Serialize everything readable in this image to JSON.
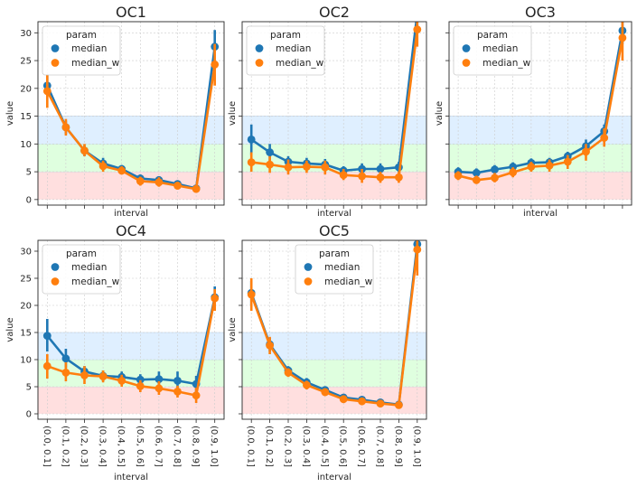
{
  "chart_data": {
    "type": "line",
    "categories": [
      "(0.0, 0.1]",
      "(0.1, 0.2]",
      "(0.2, 0.3]",
      "(0.3, 0.4]",
      "(0.4, 0.5]",
      "(0.5, 0.6]",
      "(0.6, 0.7]",
      "(0.7, 0.8]",
      "(0.8, 0.9]",
      "(0.9, 1.0]"
    ],
    "ylim": [
      -1,
      32
    ],
    "yticks": [
      0,
      5,
      10,
      15,
      20,
      25,
      30
    ],
    "xlabel": "interval",
    "ylabel": "value",
    "legend_title": "param",
    "colors": {
      "median": "#1f77b4",
      "median_w": "#ff7f0e",
      "band_low": "#ffdddd",
      "band_mid": "#ddffdd",
      "band_high": "#ddeeff",
      "grid": "#cccccc"
    },
    "bands": [
      {
        "from": 0,
        "to": 5,
        "color": "#ffdddd"
      },
      {
        "from": 5,
        "to": 10,
        "color": "#ddffdd"
      },
      {
        "from": 10,
        "to": 15,
        "color": "#ddeeff"
      }
    ],
    "panels": [
      {
        "title": "OC1",
        "legend": "upper-left",
        "series": [
          {
            "name": "median",
            "values": [
              20.5,
              13.0,
              8.8,
              6.5,
              5.5,
              3.8,
              3.5,
              2.8,
              2.0,
              27.5
            ],
            "err": [
              [
                18.5,
                22.5
              ],
              [
                11.8,
                14.2
              ],
              [
                7.8,
                9.8
              ],
              [
                5.5,
                7.5
              ],
              [
                4.8,
                6.2
              ],
              [
                3.0,
                4.5
              ],
              [
                2.8,
                4.2
              ],
              [
                2.2,
                3.4
              ],
              [
                1.5,
                2.6
              ],
              [
                24.0,
                30.5
              ]
            ]
          },
          {
            "name": "median_w",
            "values": [
              19.5,
              13.0,
              8.8,
              6.0,
              5.2,
              3.3,
              3.1,
              2.5,
              1.9,
              24.3
            ],
            "err": [
              [
                16.5,
                22.5
              ],
              [
                11.5,
                14.5
              ],
              [
                7.8,
                10.0
              ],
              [
                5.0,
                7.0
              ],
              [
                4.5,
                6.0
              ],
              [
                2.5,
                4.1
              ],
              [
                2.3,
                4.0
              ],
              [
                1.8,
                3.2
              ],
              [
                1.3,
                2.5
              ],
              [
                20.5,
                28.0
              ]
            ]
          }
        ]
      },
      {
        "title": "OC2",
        "legend": "upper-left",
        "series": [
          {
            "name": "median",
            "values": [
              10.8,
              8.5,
              6.8,
              6.5,
              6.3,
              5.2,
              5.5,
              5.5,
              5.8,
              33.5
            ],
            "err": [
              [
                8.0,
                13.5
              ],
              [
                7.0,
                10.0
              ],
              [
                5.8,
                7.8
              ],
              [
                5.5,
                7.5
              ],
              [
                5.3,
                7.3
              ],
              [
                4.5,
                6.0
              ],
              [
                4.5,
                6.5
              ],
              [
                4.5,
                6.5
              ],
              [
                4.8,
                6.8
              ],
              [
                30.0,
                35.0
              ]
            ]
          },
          {
            "name": "median_w",
            "values": [
              6.7,
              6.3,
              5.8,
              5.9,
              5.8,
              4.4,
              4.2,
              4.0,
              4.0,
              30.6
            ],
            "err": [
              [
                5.0,
                8.5
              ],
              [
                4.8,
                7.8
              ],
              [
                4.5,
                7.2
              ],
              [
                4.8,
                7.0
              ],
              [
                4.5,
                7.0
              ],
              [
                3.5,
                5.5
              ],
              [
                3.0,
                5.5
              ],
              [
                3.0,
                5.0
              ],
              [
                3.0,
                5.0
              ],
              [
                27.5,
                33.5
              ]
            ]
          }
        ]
      },
      {
        "title": "OC3",
        "legend": "upper-left",
        "series": [
          {
            "name": "median",
            "values": [
              5.0,
              4.8,
              5.4,
              5.9,
              6.6,
              6.7,
              7.8,
              9.6,
              12.3,
              30.4
            ],
            "err": [
              [
                4.2,
                5.8
              ],
              [
                4.0,
                5.6
              ],
              [
                4.6,
                6.2
              ],
              [
                5.1,
                6.7
              ],
              [
                5.8,
                7.4
              ],
              [
                5.9,
                7.5
              ],
              [
                7.0,
                8.6
              ],
              [
                8.5,
                10.8
              ],
              [
                11.0,
                13.5
              ],
              [
                28.0,
                33.0
              ]
            ]
          },
          {
            "name": "median_w",
            "values": [
              4.3,
              3.5,
              3.9,
              4.9,
              5.9,
              6.1,
              6.8,
              8.6,
              11.1,
              29.1
            ],
            "err": [
              [
                3.5,
                5.1
              ],
              [
                2.8,
                4.3
              ],
              [
                3.1,
                4.8
              ],
              [
                4.0,
                5.8
              ],
              [
                5.0,
                6.8
              ],
              [
                5.0,
                7.2
              ],
              [
                5.5,
                8.0
              ],
              [
                7.0,
                10.0
              ],
              [
                9.5,
                12.8
              ],
              [
                25.0,
                32.5
              ]
            ]
          }
        ]
      },
      {
        "title": "OC4",
        "legend": "upper-left",
        "series": [
          {
            "name": "median",
            "values": [
              14.4,
              10.2,
              7.8,
              7.0,
              6.8,
              6.3,
              6.4,
              6.1,
              5.5,
              21.5
            ],
            "err": [
              [
                11.5,
                17.5
              ],
              [
                8.5,
                12.0
              ],
              [
                6.8,
                8.8
              ],
              [
                6.0,
                8.0
              ],
              [
                5.8,
                7.8
              ],
              [
                5.3,
                7.3
              ],
              [
                5.0,
                7.8
              ],
              [
                4.5,
                7.8
              ],
              [
                4.0,
                7.0
              ],
              [
                19.5,
                23.5
              ]
            ]
          },
          {
            "name": "median_w",
            "values": [
              8.8,
              7.6,
              7.1,
              6.9,
              6.1,
              5.1,
              4.7,
              4.1,
              3.4,
              21.3
            ],
            "err": [
              [
                6.5,
                11.0
              ],
              [
                6.0,
                9.5
              ],
              [
                5.5,
                8.8
              ],
              [
                5.8,
                8.0
              ],
              [
                5.0,
                7.2
              ],
              [
                4.0,
                6.2
              ],
              [
                3.5,
                6.0
              ],
              [
                3.0,
                5.2
              ],
              [
                2.0,
                4.8
              ],
              [
                19.0,
                23.0
              ]
            ]
          }
        ]
      },
      {
        "title": "OC5",
        "legend": "upper-center",
        "series": [
          {
            "name": "median",
            "values": [
              22.3,
              12.8,
              8.0,
              5.8,
              4.4,
              3.0,
              2.6,
              2.1,
              1.7,
              31.3
            ],
            "err": [
              [
                20.0,
                24.5
              ],
              [
                11.5,
                14.0
              ],
              [
                7.2,
                8.8
              ],
              [
                5.0,
                6.6
              ],
              [
                3.8,
                5.0
              ],
              [
                2.5,
                3.5
              ],
              [
                2.1,
                3.1
              ],
              [
                1.6,
                2.6
              ],
              [
                1.2,
                2.2
              ],
              [
                29.0,
                33.0
              ]
            ]
          },
          {
            "name": "median_w",
            "values": [
              22.0,
              12.6,
              7.6,
              5.3,
              4.0,
              2.7,
              2.3,
              1.9,
              1.6,
              30.3
            ],
            "err": [
              [
                19.0,
                25.0
              ],
              [
                11.0,
                14.2
              ],
              [
                6.8,
                8.4
              ],
              [
                4.5,
                6.1
              ],
              [
                3.3,
                4.7
              ],
              [
                2.2,
                3.2
              ],
              [
                1.8,
                2.8
              ],
              [
                1.4,
                2.4
              ],
              [
                1.1,
                2.1
              ],
              [
                25.5,
                33.0
              ]
            ]
          }
        ]
      }
    ]
  }
}
